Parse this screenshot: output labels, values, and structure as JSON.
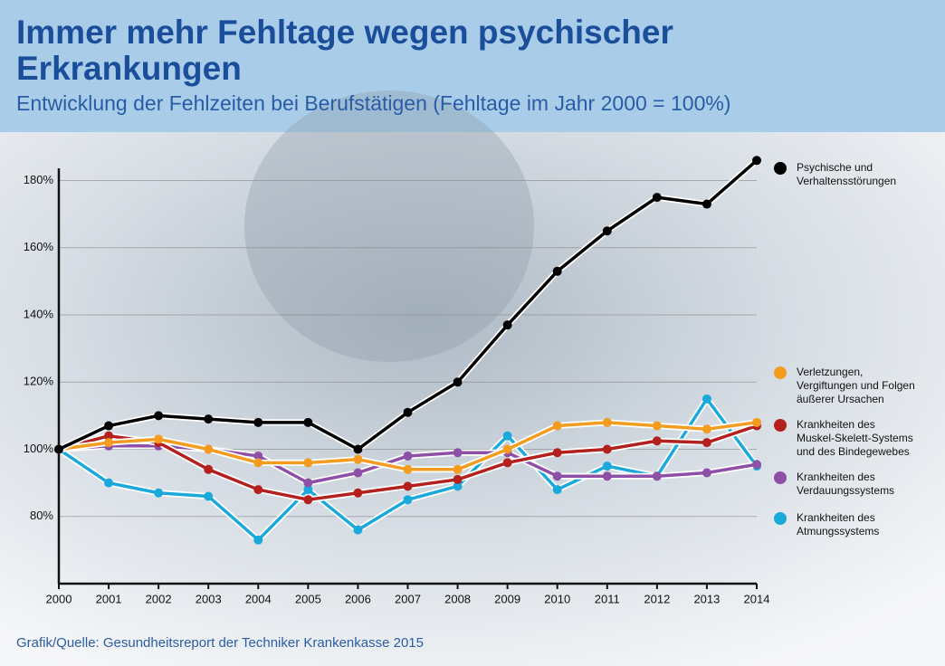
{
  "chart_data": {
    "type": "line",
    "title": "Immer mehr Fehltage wegen psychischer Erkrankungen",
    "subtitle": "Entwicklung der Fehlzeiten bei Berufstätigen (Fehltage im Jahr 2000 = 100%)",
    "source": "Grafik/Quelle: Gesundheitsreport der Techniker Krankenkasse 2015",
    "x": [
      2000,
      2001,
      2002,
      2003,
      2004,
      2005,
      2006,
      2007,
      2008,
      2009,
      2010,
      2011,
      2012,
      2013,
      2014
    ],
    "xlim": [
      2000,
      2014
    ],
    "xticks": [
      2000,
      2001,
      2002,
      2003,
      2004,
      2005,
      2006,
      2007,
      2008,
      2009,
      2010,
      2011,
      2012,
      2013,
      2014
    ],
    "ylim": [
      60,
      185
    ],
    "yticks": [
      {
        "value": 80,
        "label": "80%"
      },
      {
        "value": 100,
        "label": "100%"
      },
      {
        "value": 120,
        "label": "120%"
      },
      {
        "value": 140,
        "label": "140%"
      },
      {
        "value": 160,
        "label": "160%"
      },
      {
        "value": 180,
        "label": "180%"
      }
    ],
    "grid": true,
    "series": [
      {
        "name": "Psychische und\nVerhaltensstörungen",
        "color": "#000000",
        "values": [
          100,
          107,
          110,
          109,
          108,
          108,
          100,
          111,
          120,
          137,
          153,
          165,
          175,
          173,
          186
        ]
      },
      {
        "name": "Verletzungen,\nVergiftungen und Folgen\näußerer Ursachen",
        "color": "#f39c1f",
        "values": [
          100,
          102,
          103,
          100,
          96,
          96,
          97,
          94,
          94,
          100,
          107,
          108,
          107,
          106,
          108
        ]
      },
      {
        "name": "Krankheiten des\nMuskel-Skelett-Systems\nund des Bindegewebes",
        "color": "#b3201d",
        "values": [
          100,
          104,
          102,
          94,
          88,
          85,
          87,
          89,
          91,
          96,
          99,
          100,
          102.5,
          102,
          107
        ]
      },
      {
        "name": "Krankheiten des\nVerdauungssystems",
        "color": "#8e4fa6",
        "values": [
          100,
          101,
          101,
          100,
          98,
          90,
          93,
          98,
          99,
          99,
          92,
          92,
          92,
          93,
          95.5
        ]
      },
      {
        "name": "Krankheiten des\nAtmungssystems",
        "color": "#1ba9dc",
        "values": [
          100,
          90,
          87,
          86,
          73,
          88,
          76,
          85,
          89,
          104,
          88,
          95,
          92,
          115,
          95
        ]
      }
    ]
  }
}
